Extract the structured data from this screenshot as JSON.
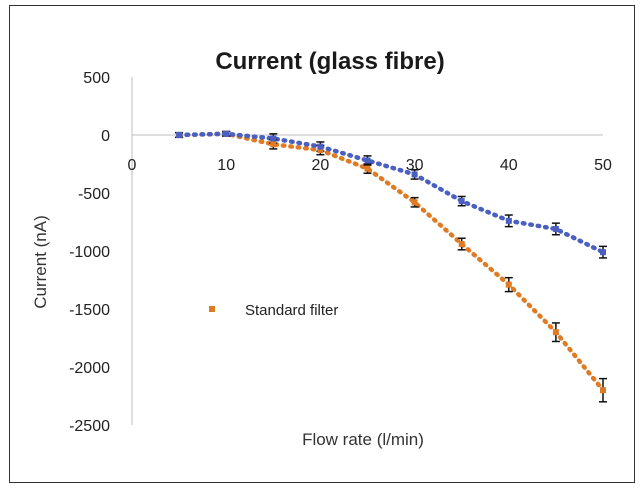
{
  "chart_data": {
    "type": "scatter",
    "title": "Current (glass fibre)",
    "xlabel": "Flow rate (l/min)",
    "ylabel": "Current (nA)",
    "xlim": [
      0,
      50
    ],
    "ylim": [
      -2500,
      500
    ],
    "x_ticks": [
      0,
      10,
      20,
      30,
      40,
      50
    ],
    "y_ticks": [
      500,
      0,
      -500,
      -1000,
      -1500,
      -2000,
      -2500
    ],
    "grid": false,
    "legend_position": "center-left",
    "series": [
      {
        "name": "Standard filter",
        "color": "#e07b24",
        "marker": "square",
        "trendline": "dotted",
        "x": [
          5,
          10,
          15,
          20,
          25,
          30,
          35,
          40,
          45,
          50
        ],
        "y": [
          0,
          10,
          -80,
          -130,
          -290,
          -580,
          -940,
          -1290,
          -1700,
          -2200
        ],
        "error": [
          20,
          20,
          40,
          40,
          40,
          40,
          50,
          60,
          80,
          100
        ]
      },
      {
        "color": "#4a5fc1",
        "marker": "square",
        "trendline": "dotted",
        "x": [
          5,
          10,
          15,
          20,
          25,
          30,
          35,
          40,
          45,
          50
        ],
        "y": [
          0,
          10,
          -30,
          -100,
          -220,
          -340,
          -570,
          -740,
          -810,
          -1010
        ],
        "error": [
          20,
          20,
          40,
          40,
          40,
          40,
          40,
          50,
          50,
          50
        ]
      }
    ]
  }
}
